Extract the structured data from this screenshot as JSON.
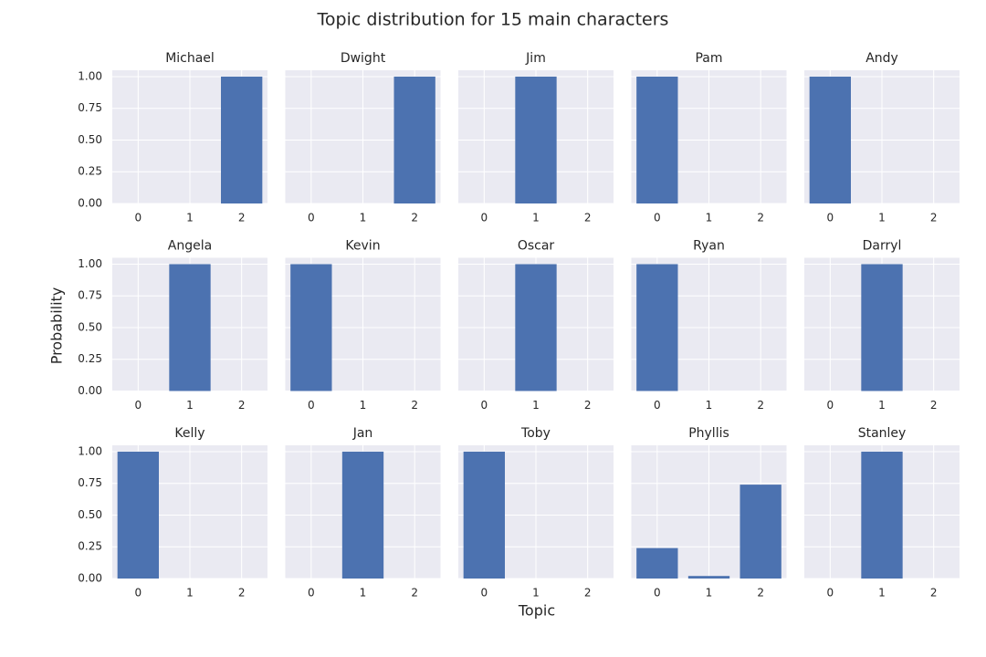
{
  "title": "Topic distribution for 15 main characters",
  "x_label": "Topic",
  "y_label": "Probability",
  "chart_data": [
    {
      "type": "bar",
      "title": "Michael",
      "x": [
        0,
        1,
        2
      ],
      "values": [
        0,
        0,
        1
      ],
      "color": "#4c72b0",
      "xlim": [
        -0.5,
        2.5
      ],
      "xticks": [
        0,
        1,
        2
      ],
      "ylim": [
        0,
        1.05
      ],
      "yticks": [
        {
          "value": 0,
          "label": "0.00"
        },
        {
          "value": 0.25,
          "label": "0.25"
        },
        {
          "value": 0.5,
          "label": "0.50"
        },
        {
          "value": 0.75,
          "label": "0.75"
        },
        {
          "value": 1,
          "label": "1.00"
        }
      ],
      "grid": true
    },
    {
      "type": "bar",
      "title": "Dwight",
      "x": [
        0,
        1,
        2
      ],
      "values": [
        0,
        0,
        1
      ],
      "color": "#4c72b0",
      "xlim": [
        -0.5,
        2.5
      ],
      "xticks": [
        0,
        1,
        2
      ],
      "ylim": [
        0,
        1.05
      ],
      "yticks": [
        0,
        0.25,
        0.5,
        0.75,
        1
      ],
      "grid": true
    },
    {
      "type": "bar",
      "title": "Jim",
      "x": [
        0,
        1,
        2
      ],
      "values": [
        0,
        1,
        0
      ],
      "color": "#4c72b0",
      "xlim": [
        -0.5,
        2.5
      ],
      "xticks": [
        0,
        1,
        2
      ],
      "ylim": [
        0,
        1.05
      ],
      "yticks": [
        0,
        0.25,
        0.5,
        0.75,
        1
      ],
      "grid": true
    },
    {
      "type": "bar",
      "title": "Pam",
      "x": [
        0,
        1,
        2
      ],
      "values": [
        1,
        0,
        0
      ],
      "color": "#4c72b0",
      "xlim": [
        -0.5,
        2.5
      ],
      "xticks": [
        0,
        1,
        2
      ],
      "ylim": [
        0,
        1.05
      ],
      "yticks": [
        0,
        0.25,
        0.5,
        0.75,
        1
      ],
      "grid": true
    },
    {
      "type": "bar",
      "title": "Andy",
      "x": [
        0,
        1,
        2
      ],
      "values": [
        1,
        0,
        0
      ],
      "color": "#4c72b0",
      "xlim": [
        -0.5,
        2.5
      ],
      "xticks": [
        0,
        1,
        2
      ],
      "ylim": [
        0,
        1.05
      ],
      "yticks": [
        0,
        0.25,
        0.5,
        0.75,
        1
      ],
      "grid": true
    },
    {
      "type": "bar",
      "title": "Angela",
      "x": [
        0,
        1,
        2
      ],
      "values": [
        0,
        1,
        0
      ],
      "color": "#4c72b0",
      "xlim": [
        -0.5,
        2.5
      ],
      "xticks": [
        0,
        1,
        2
      ],
      "ylim": [
        0,
        1.05
      ],
      "yticks": [
        {
          "value": 0,
          "label": "0.00"
        },
        {
          "value": 0.25,
          "label": "0.25"
        },
        {
          "value": 0.5,
          "label": "0.50"
        },
        {
          "value": 0.75,
          "label": "0.75"
        },
        {
          "value": 1,
          "label": "1.00"
        }
      ],
      "grid": true
    },
    {
      "type": "bar",
      "title": "Kevin",
      "x": [
        0,
        1,
        2
      ],
      "values": [
        1,
        0,
        0
      ],
      "color": "#4c72b0",
      "xlim": [
        -0.5,
        2.5
      ],
      "xticks": [
        0,
        1,
        2
      ],
      "ylim": [
        0,
        1.05
      ],
      "yticks": [
        0,
        0.25,
        0.5,
        0.75,
        1
      ],
      "grid": true
    },
    {
      "type": "bar",
      "title": "Oscar",
      "x": [
        0,
        1,
        2
      ],
      "values": [
        0,
        1,
        0
      ],
      "color": "#4c72b0",
      "xlim": [
        -0.5,
        2.5
      ],
      "xticks": [
        0,
        1,
        2
      ],
      "ylim": [
        0,
        1.05
      ],
      "yticks": [
        0,
        0.25,
        0.5,
        0.75,
        1
      ],
      "grid": true
    },
    {
      "type": "bar",
      "title": "Ryan",
      "x": [
        0,
        1,
        2
      ],
      "values": [
        1,
        0,
        0
      ],
      "color": "#4c72b0",
      "xlim": [
        -0.5,
        2.5
      ],
      "xticks": [
        0,
        1,
        2
      ],
      "ylim": [
        0,
        1.05
      ],
      "yticks": [
        0,
        0.25,
        0.5,
        0.75,
        1
      ],
      "grid": true
    },
    {
      "type": "bar",
      "title": "Darryl",
      "x": [
        0,
        1,
        2
      ],
      "values": [
        0,
        1,
        0
      ],
      "color": "#4c72b0",
      "xlim": [
        -0.5,
        2.5
      ],
      "xticks": [
        0,
        1,
        2
      ],
      "ylim": [
        0,
        1.05
      ],
      "yticks": [
        0,
        0.25,
        0.5,
        0.75,
        1
      ],
      "grid": true
    },
    {
      "type": "bar",
      "title": "Kelly",
      "x": [
        0,
        1,
        2
      ],
      "values": [
        1,
        0,
        0
      ],
      "color": "#4c72b0",
      "xlim": [
        -0.5,
        2.5
      ],
      "xticks": [
        0,
        1,
        2
      ],
      "ylim": [
        0,
        1.05
      ],
      "yticks": [
        {
          "value": 0,
          "label": "0.00"
        },
        {
          "value": 0.25,
          "label": "0.25"
        },
        {
          "value": 0.5,
          "label": "0.50"
        },
        {
          "value": 0.75,
          "label": "0.75"
        },
        {
          "value": 1,
          "label": "1.00"
        }
      ],
      "grid": true
    },
    {
      "type": "bar",
      "title": "Jan",
      "x": [
        0,
        1,
        2
      ],
      "values": [
        0,
        1,
        0
      ],
      "color": "#4c72b0",
      "xlim": [
        -0.5,
        2.5
      ],
      "xticks": [
        0,
        1,
        2
      ],
      "ylim": [
        0,
        1.05
      ],
      "yticks": [
        0,
        0.25,
        0.5,
        0.75,
        1
      ],
      "grid": true
    },
    {
      "type": "bar",
      "title": "Toby",
      "x": [
        0,
        1,
        2
      ],
      "values": [
        1,
        0,
        0
      ],
      "color": "#4c72b0",
      "xlim": [
        -0.5,
        2.5
      ],
      "xticks": [
        0,
        1,
        2
      ],
      "ylim": [
        0,
        1.05
      ],
      "yticks": [
        0,
        0.25,
        0.5,
        0.75,
        1
      ],
      "grid": true
    },
    {
      "type": "bar",
      "title": "Phyllis",
      "x": [
        0,
        1,
        2
      ],
      "values": [
        0.24,
        0.02,
        0.74
      ],
      "color": "#4c72b0",
      "xlim": [
        -0.5,
        2.5
      ],
      "xticks": [
        0,
        1,
        2
      ],
      "ylim": [
        0,
        1.05
      ],
      "yticks": [
        0,
        0.25,
        0.5,
        0.75,
        1
      ],
      "grid": true
    },
    {
      "type": "bar",
      "title": "Stanley",
      "x": [
        0,
        1,
        2
      ],
      "values": [
        0,
        1,
        0
      ],
      "color": "#4c72b0",
      "xlim": [
        -0.5,
        2.5
      ],
      "xticks": [
        0,
        1,
        2
      ],
      "ylim": [
        0,
        1.05
      ],
      "yticks": [
        0,
        0.25,
        0.5,
        0.75,
        1
      ],
      "grid": true
    }
  ]
}
